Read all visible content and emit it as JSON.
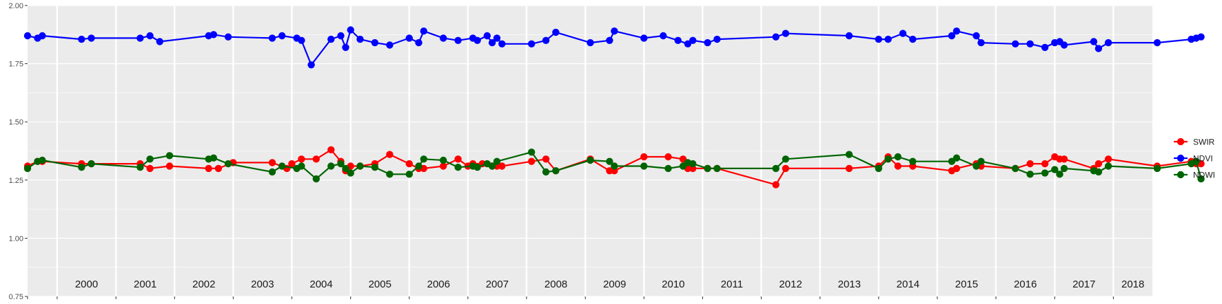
{
  "chart_data": {
    "type": "line",
    "title": "",
    "xlabel": "",
    "ylabel": "",
    "ylim": [
      0.75,
      2.0
    ],
    "xlim": [
      "1999-07-01",
      "2018-09-01"
    ],
    "y_ticks": [
      "0.75",
      "1.00",
      "1.25",
      "1.50",
      "1.75",
      "2.00"
    ],
    "x_year_labels": [
      "2000",
      "2001",
      "2002",
      "2003",
      "2004",
      "2005",
      "2006",
      "2007",
      "2008",
      "2009",
      "2010",
      "2011",
      "2012",
      "2013",
      "2014",
      "2015",
      "2016",
      "2017",
      "2018"
    ],
    "grid": true,
    "panel_background": "#ebebeb",
    "legend": {
      "position": "right",
      "entries": [
        "SWIR",
        "NDVI",
        "NDWI"
      ]
    },
    "series": [
      {
        "name": "SWIR",
        "color": "#ff0000",
        "x": [
          "1999-07-01",
          "1999-09-01",
          "1999-10-01",
          "2000-06-01",
          "2000-08-01",
          "2001-06-01",
          "2001-08-01",
          "2001-12-01",
          "2002-08-01",
          "2002-10-01",
          "2003-01-01",
          "2003-09-01",
          "2003-12-01",
          "2004-01-01",
          "2004-03-01",
          "2004-06-01",
          "2004-09-01",
          "2004-11-01",
          "2004-12-01",
          "2005-01-01",
          "2005-03-01",
          "2005-06-01",
          "2005-09-01",
          "2006-01-01",
          "2006-03-01",
          "2006-04-01",
          "2006-08-01",
          "2006-11-01",
          "2007-01-01",
          "2007-02-01",
          "2007-04-01",
          "2007-06-01",
          "2007-07-01",
          "2007-08-01",
          "2008-02-01",
          "2008-05-01",
          "2008-07-01",
          "2009-02-01",
          "2009-06-01",
          "2009-07-01",
          "2010-01-01",
          "2010-06-01",
          "2010-09-01",
          "2010-10-01",
          "2010-11-01",
          "2011-02-01",
          "2011-04-01",
          "2012-04-01",
          "2012-06-01",
          "2013-07-01",
          "2014-01-01",
          "2014-03-01",
          "2014-05-01",
          "2014-08-01",
          "2015-04-01",
          "2015-05-01",
          "2015-09-01",
          "2015-10-01",
          "2016-05-01",
          "2016-08-01",
          "2016-11-01",
          "2017-01-01",
          "2017-02-01",
          "2017-03-01",
          "2017-09-01",
          "2017-10-01",
          "2017-12-01",
          "2018-10-01",
          "2019-05-01",
          "2019-06-01",
          "2019-07-01"
        ],
        "values": [
          1.31,
          1.33,
          1.33,
          1.32,
          1.32,
          1.32,
          1.3,
          1.31,
          1.3,
          1.3,
          1.325,
          1.325,
          1.3,
          1.32,
          1.34,
          1.34,
          1.38,
          1.33,
          1.29,
          1.31,
          1.31,
          1.32,
          1.36,
          1.32,
          1.3,
          1.3,
          1.31,
          1.34,
          1.31,
          1.32,
          1.32,
          1.31,
          1.31,
          1.31,
          1.33,
          1.34,
          1.29,
          1.34,
          1.29,
          1.29,
          1.35,
          1.35,
          1.34,
          1.3,
          1.3,
          1.3,
          1.3,
          1.23,
          1.3,
          1.3,
          1.31,
          1.35,
          1.31,
          1.31,
          1.29,
          1.3,
          1.32,
          1.31,
          1.3,
          1.32,
          1.32,
          1.35,
          1.34,
          1.34,
          1.3,
          1.32,
          1.34,
          1.31,
          1.33,
          1.32,
          1.32
        ]
      },
      {
        "name": "NDVI",
        "color": "#0000ff",
        "x": [
          "1999-07-01",
          "1999-09-01",
          "1999-10-01",
          "2000-06-01",
          "2000-08-01",
          "2001-06-01",
          "2001-08-01",
          "2001-10-01",
          "2002-08-01",
          "2002-09-01",
          "2002-12-01",
          "2003-09-01",
          "2003-11-01",
          "2004-02-01",
          "2004-03-01",
          "2004-05-01",
          "2004-09-01",
          "2004-11-01",
          "2004-12-01",
          "2005-01-01",
          "2005-03-01",
          "2005-06-01",
          "2005-09-01",
          "2006-01-01",
          "2006-03-01",
          "2006-04-01",
          "2006-08-01",
          "2006-11-01",
          "2007-02-01",
          "2007-03-01",
          "2007-05-01",
          "2007-06-01",
          "2007-07-01",
          "2007-08-01",
          "2008-02-01",
          "2008-05-01",
          "2008-07-01",
          "2009-02-01",
          "2009-06-01",
          "2009-07-01",
          "2010-01-01",
          "2010-05-01",
          "2010-08-01",
          "2010-10-01",
          "2010-11-01",
          "2011-02-01",
          "2011-04-01",
          "2012-04-01",
          "2012-06-01",
          "2013-07-01",
          "2014-01-01",
          "2014-03-01",
          "2014-06-01",
          "2014-08-01",
          "2015-04-01",
          "2015-05-01",
          "2015-09-01",
          "2015-10-01",
          "2016-05-01",
          "2016-08-01",
          "2016-11-01",
          "2017-01-01",
          "2017-02-01",
          "2017-03-01",
          "2017-09-01",
          "2017-10-01",
          "2017-12-01",
          "2018-10-01",
          "2019-05-01",
          "2019-06-01",
          "2019-07-01"
        ],
        "values": [
          1.87,
          1.86,
          1.87,
          1.855,
          1.86,
          1.86,
          1.87,
          1.845,
          1.87,
          1.875,
          1.865,
          1.86,
          1.87,
          1.86,
          1.85,
          1.745,
          1.855,
          1.87,
          1.82,
          1.895,
          1.855,
          1.84,
          1.83,
          1.86,
          1.84,
          1.89,
          1.86,
          1.85,
          1.86,
          1.85,
          1.87,
          1.84,
          1.86,
          1.835,
          1.835,
          1.85,
          1.885,
          1.84,
          1.85,
          1.89,
          1.86,
          1.87,
          1.85,
          1.835,
          1.85,
          1.84,
          1.855,
          1.865,
          1.88,
          1.87,
          1.855,
          1.855,
          1.88,
          1.855,
          1.87,
          1.89,
          1.87,
          1.84,
          1.835,
          1.835,
          1.82,
          1.84,
          1.845,
          1.83,
          1.845,
          1.815,
          1.84,
          1.84,
          1.855,
          1.86,
          1.865
        ]
      },
      {
        "name": "NDWI",
        "color": "#006400",
        "x": [
          "1999-07-01",
          "1999-09-01",
          "1999-10-01",
          "2000-06-01",
          "2000-08-01",
          "2001-06-01",
          "2001-08-01",
          "2001-12-01",
          "2002-08-01",
          "2002-09-01",
          "2002-12-01",
          "2003-09-01",
          "2003-11-01",
          "2004-02-01",
          "2004-03-01",
          "2004-06-01",
          "2004-09-01",
          "2004-11-01",
          "2004-12-01",
          "2005-01-01",
          "2005-03-01",
          "2005-06-01",
          "2005-09-01",
          "2006-01-01",
          "2006-03-01",
          "2006-04-01",
          "2006-08-01",
          "2006-11-01",
          "2007-02-01",
          "2007-03-01",
          "2007-05-01",
          "2007-06-01",
          "2007-07-01",
          "2008-02-01",
          "2008-05-01",
          "2008-07-01",
          "2009-02-01",
          "2009-06-01",
          "2009-07-01",
          "2010-01-01",
          "2010-06-01",
          "2010-09-01",
          "2010-10-01",
          "2010-11-01",
          "2011-02-01",
          "2011-04-01",
          "2012-04-01",
          "2012-06-01",
          "2013-07-01",
          "2014-01-01",
          "2014-03-01",
          "2014-05-01",
          "2014-08-01",
          "2015-04-01",
          "2015-05-01",
          "2015-09-01",
          "2015-10-01",
          "2016-05-01",
          "2016-08-01",
          "2016-11-01",
          "2017-01-01",
          "2017-02-01",
          "2017-03-01",
          "2017-09-01",
          "2017-10-01",
          "2017-12-01",
          "2018-10-01",
          "2019-05-01",
          "2019-06-01",
          "2019-07-01"
        ],
        "values": [
          1.3,
          1.33,
          1.335,
          1.305,
          1.32,
          1.305,
          1.34,
          1.355,
          1.34,
          1.345,
          1.32,
          1.285,
          1.31,
          1.3,
          1.31,
          1.255,
          1.31,
          1.32,
          1.3,
          1.28,
          1.31,
          1.305,
          1.275,
          1.275,
          1.31,
          1.34,
          1.335,
          1.305,
          1.31,
          1.305,
          1.32,
          1.31,
          1.33,
          1.37,
          1.285,
          1.29,
          1.335,
          1.33,
          1.31,
          1.31,
          1.3,
          1.31,
          1.325,
          1.32,
          1.3,
          1.3,
          1.3,
          1.34,
          1.36,
          1.3,
          1.34,
          1.35,
          1.33,
          1.33,
          1.345,
          1.31,
          1.33,
          1.3,
          1.275,
          1.28,
          1.295,
          1.275,
          1.3,
          1.29,
          1.285,
          1.31,
          1.3,
          1.32,
          1.33,
          1.255
        ]
      }
    ]
  }
}
